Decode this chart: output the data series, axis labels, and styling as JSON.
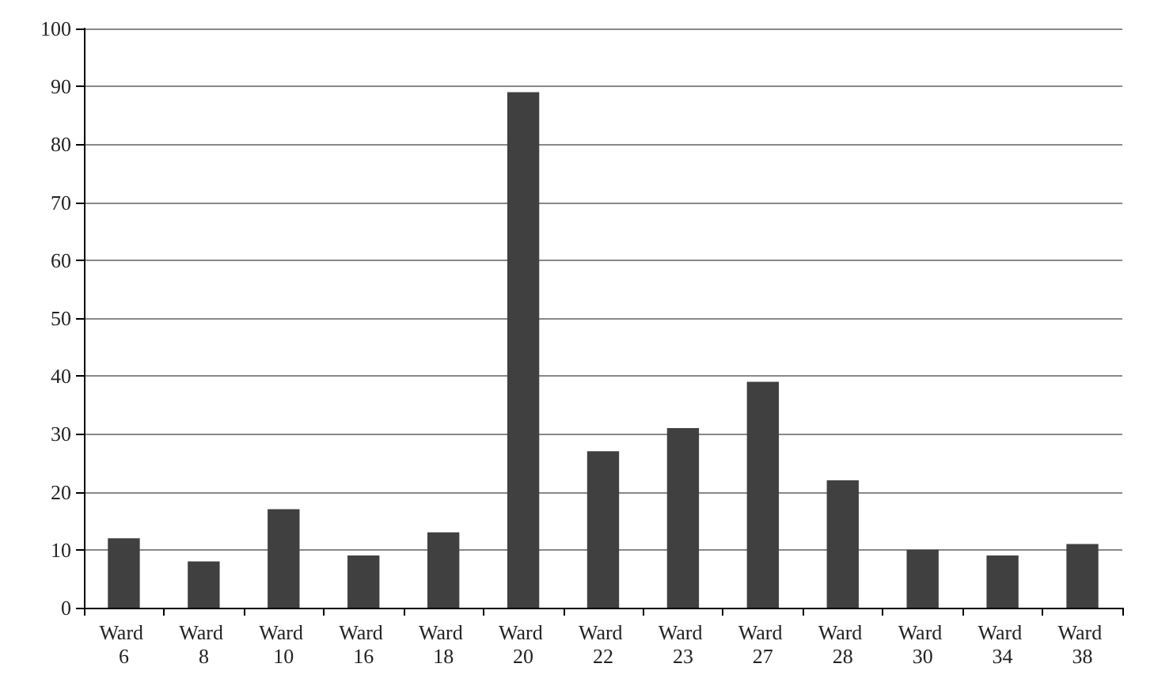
{
  "chart_data": {
    "type": "bar",
    "categories": [
      "Ward 6",
      "Ward 8",
      "Ward 10",
      "Ward 16",
      "Ward 18",
      "Ward 20",
      "Ward 22",
      "Ward 23",
      "Ward 27",
      "Ward 28",
      "Ward 30",
      "Ward 34",
      "Ward 38"
    ],
    "values": [
      12,
      8,
      17,
      9,
      13,
      89,
      27,
      31,
      39,
      22,
      10,
      9,
      11
    ],
    "color": "#404040",
    "ylim": [
      0,
      100
    ],
    "yticks": [
      0,
      10,
      20,
      30,
      40,
      50,
      60,
      70,
      80,
      90,
      100
    ],
    "grid": "y"
  }
}
